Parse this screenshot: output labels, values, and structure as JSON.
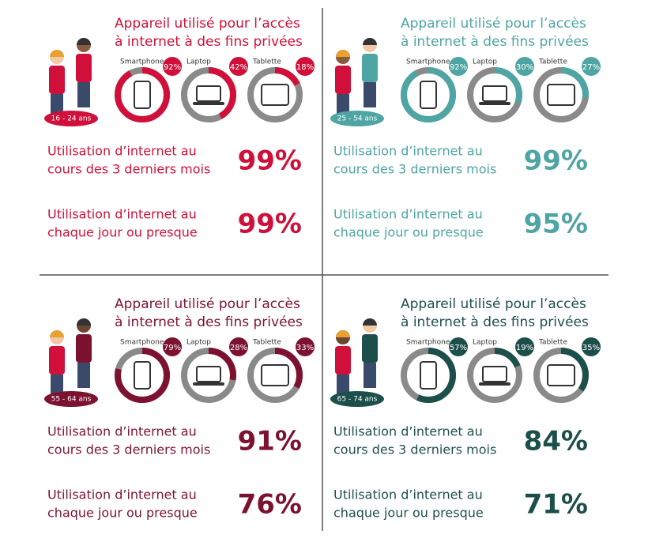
{
  "panels": [
    {
      "age": "16 - 24 ans",
      "color": "#d0103a",
      "title": [
        "Appareil utilisé pour l’accès",
        "à internet à des fins privées"
      ],
      "devices": [
        {
          "name": "Smartphone",
          "value": 92,
          "label": "92%"
        },
        {
          "name": "Laptop",
          "value": 42,
          "label": "42%"
        },
        {
          "name": "Tablette",
          "value": 18,
          "label": "18%"
        }
      ],
      "stats": [
        {
          "text": [
            "Utilisation d’internet au",
            "cours des 3 derniers mois"
          ],
          "value": "99%"
        },
        {
          "text": [
            "Utilisation d’internet au",
            "chaque jour ou presque"
          ],
          "value": "99%"
        }
      ]
    },
    {
      "age": "25 - 54 ans",
      "color": "#4ea5a3",
      "title": [
        "Appareil utilisé pour l’accès",
        "à internet à des fins privées"
      ],
      "devices": [
        {
          "name": "Smartphone",
          "value": 92,
          "label": "92%"
        },
        {
          "name": "Laptop",
          "value": 30,
          "label": "30%"
        },
        {
          "name": "Tablette",
          "value": 27,
          "label": "27%"
        }
      ],
      "stats": [
        {
          "text": [
            "Utilisation d’internet au",
            "cours des 3 derniers mois"
          ],
          "value": "99%"
        },
        {
          "text": [
            "Utilisation d’internet au",
            "chaque jour ou presque"
          ],
          "value": "95%"
        }
      ]
    },
    {
      "age": "55 - 64 ans",
      "color": "#7d1230",
      "title": [
        "Appareil utilisé pour l’accès",
        "à internet à des fins privées"
      ],
      "devices": [
        {
          "name": "Smartphone",
          "value": 79,
          "label": "79%"
        },
        {
          "name": "Laptop",
          "value": 28,
          "label": "28%"
        },
        {
          "name": "Tablette",
          "value": 33,
          "label": "33%"
        }
      ],
      "stats": [
        {
          "text": [
            "Utilisation d’internet au",
            "cours des 3 derniers mois"
          ],
          "value": "91%"
        },
        {
          "text": [
            "Utilisation d’internet au",
            "chaque jour ou presque"
          ],
          "value": "76%"
        }
      ]
    },
    {
      "age": "65 - 74 ans",
      "color": "#1d4f4a",
      "title": [
        "Appareil utilisé pour l’accès",
        "à internet à des fins privées"
      ],
      "devices": [
        {
          "name": "Smartphone",
          "value": 57,
          "label": "57%"
        },
        {
          "name": "Laptop",
          "value": 19,
          "label": "19%"
        },
        {
          "name": "Tablette",
          "value": 35,
          "label": "35%"
        }
      ],
      "stats": [
        {
          "text": [
            "Utilisation d’internet au",
            "cours des 3 derniers mois"
          ],
          "value": "84%"
        },
        {
          "text": [
            "Utilisation d’internet au",
            "chaque jour ou presque"
          ],
          "value": "71%"
        }
      ]
    }
  ]
}
